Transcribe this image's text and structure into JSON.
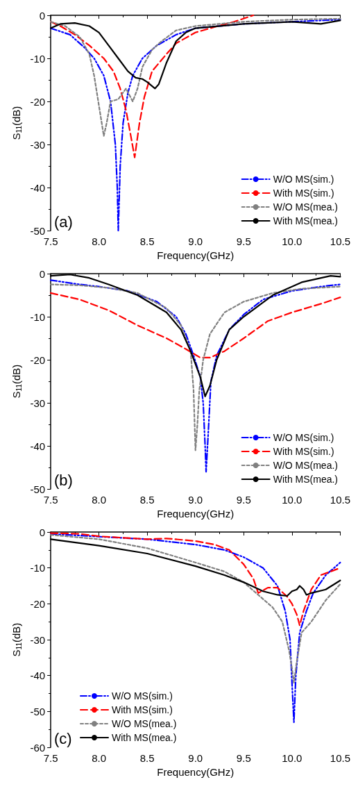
{
  "chart_data": [
    {
      "type": "line",
      "xlabel": "Frequency(GHz)",
      "ylabel": "S$_{11}$(dB)",
      "annotations": [
        "(a)"
      ],
      "xlim": [
        7.5,
        10.5
      ],
      "xticks": [
        7.5,
        {
          "value": 8,
          "label": "8.0"
        },
        8.5,
        {
          "value": 9,
          "label": "9.0"
        },
        9.5,
        {
          "value": 10,
          "label": "10.0"
        },
        10.5
      ],
      "ylim": [
        -50,
        0
      ],
      "yticks": [
        0,
        -10,
        -20,
        -30,
        -40,
        -50
      ],
      "legend": "bottom right",
      "series": [
        {
          "name": "W/O MS(sim.)",
          "color": "#0000ff",
          "line_style": "dashdot",
          "x": [
            7.5,
            7.7,
            7.85,
            7.95,
            8.05,
            8.12,
            8.17,
            8.19,
            8.2,
            8.22,
            8.25,
            8.3,
            8.35,
            8.45,
            8.6,
            8.8,
            9.0,
            9.5,
            10.0,
            10.5
          ],
          "values": [
            -3,
            -4.5,
            -7.5,
            -10,
            -14,
            -20,
            -30,
            -40,
            -50,
            -35,
            -25,
            -18,
            -14,
            -10,
            -7,
            -4.5,
            -3,
            -2,
            -1.5,
            -1
          ]
        },
        {
          "name": "With MS(sim.)",
          "color": "#ff0000",
          "line_style": "dashed",
          "x": [
            7.5,
            7.6,
            7.75,
            7.9,
            8.05,
            8.15,
            8.22,
            8.28,
            8.33,
            8.37,
            8.42,
            8.47,
            8.55,
            8.7,
            8.8,
            9.0,
            9.2,
            9.4,
            9.6
          ],
          "values": [
            -1.5,
            -2.5,
            -4.5,
            -7,
            -10,
            -13,
            -17,
            -22,
            -28,
            -33,
            -25,
            -19,
            -13,
            -9,
            -6.5,
            -4,
            -2.7,
            -1.5,
            0
          ]
        },
        {
          "name": "W/O MS(mea.)",
          "color": "#808080",
          "line_style": "dotted",
          "x": [
            7.5,
            7.65,
            7.8,
            7.9,
            7.95,
            8.0,
            8.05,
            8.08,
            8.12,
            8.2,
            8.28,
            8.35,
            8.4,
            8.45,
            8.55,
            8.65,
            8.8,
            9.0,
            9.5,
            10.0,
            10.5
          ],
          "values": [
            -1.5,
            -2.5,
            -5,
            -9,
            -14,
            -21,
            -28,
            -25,
            -20,
            -19.5,
            -17,
            -20,
            -17,
            -12,
            -8,
            -6,
            -3.5,
            -2.5,
            -1.5,
            -1,
            -0.8
          ]
        },
        {
          "name": "With MS(mea.)",
          "color": "#000000",
          "line_style": "solid",
          "x": [
            7.5,
            7.6,
            7.75,
            7.9,
            8.0,
            8.1,
            8.2,
            8.3,
            8.38,
            8.45,
            8.5,
            8.58,
            8.62,
            8.7,
            8.8,
            8.9,
            9.0,
            9.5,
            10.0,
            10.3,
            10.5
          ],
          "values": [
            -3,
            -2,
            -1.8,
            -2.5,
            -4,
            -7,
            -10,
            -13,
            -14.5,
            -14.8,
            -15.5,
            -17,
            -16,
            -11,
            -6,
            -4,
            -3,
            -2,
            -1.5,
            -2,
            -1.2
          ]
        }
      ]
    },
    {
      "type": "line",
      "xlabel": "Frequency(GHz)",
      "ylabel": "S$_{11}$(dB)",
      "annotations": [
        "(b)"
      ],
      "xlim": [
        7.5,
        10.5
      ],
      "xticks": [
        7.5,
        {
          "value": 8,
          "label": "8.0"
        },
        8.5,
        {
          "value": 9,
          "label": "9.0"
        },
        9.5,
        {
          "value": 10,
          "label": "10.0"
        },
        10.5
      ],
      "ylim": [
        -50,
        0
      ],
      "yticks": [
        0,
        -10,
        -20,
        -30,
        -40,
        -50
      ],
      "legend": "bottom right",
      "series": [
        {
          "name": "W/O MS(sim.)",
          "color": "#0000ff",
          "line_style": "dashdot",
          "x": [
            7.5,
            7.8,
            8.0,
            8.3,
            8.6,
            8.8,
            8.9,
            8.98,
            9.05,
            9.08,
            9.1,
            9.11,
            9.13,
            9.16,
            9.22,
            9.35,
            9.5,
            9.7,
            10.0,
            10.3,
            10.5
          ],
          "values": [
            -1.5,
            -2.5,
            -3,
            -4,
            -6.5,
            -10,
            -14,
            -19,
            -24,
            -30,
            -40,
            -46,
            -38,
            -25,
            -19,
            -13,
            -9.5,
            -6,
            -4,
            -3,
            -2.5
          ]
        },
        {
          "name": "With MS(sim.)",
          "color": "#ff0000",
          "line_style": "dashed",
          "x": [
            7.5,
            7.8,
            8.1,
            8.4,
            8.7,
            8.9,
            9.05,
            9.15,
            9.3,
            9.5,
            9.75,
            10.0,
            10.3,
            10.5
          ],
          "values": [
            -4.5,
            -6,
            -8.5,
            -12,
            -15,
            -17.5,
            -19.5,
            -19.5,
            -18,
            -15,
            -11,
            -9,
            -7,
            -5.5
          ]
        },
        {
          "name": "W/O MS(mea.)",
          "color": "#808080",
          "line_style": "dotted",
          "x": [
            7.5,
            7.8,
            8.1,
            8.4,
            8.7,
            8.85,
            8.95,
            8.98,
            9.0,
            9.02,
            9.04,
            9.08,
            9.15,
            9.3,
            9.5,
            9.8,
            10.1,
            10.5
          ],
          "values": [
            -2.5,
            -2.7,
            -3.3,
            -4.5,
            -8,
            -12,
            -18,
            -27,
            -41,
            -35,
            -27,
            -20,
            -14,
            -9,
            -6.5,
            -4.5,
            -3.5,
            -3
          ]
        },
        {
          "name": "With MS(mea.)",
          "color": "#000000",
          "line_style": "solid",
          "x": [
            7.5,
            7.7,
            7.9,
            8.1,
            8.4,
            8.7,
            8.85,
            8.95,
            9.05,
            9.1,
            9.15,
            9.22,
            9.35,
            9.5,
            9.8,
            10.1,
            10.4,
            10.5
          ],
          "values": [
            -0.5,
            -0.2,
            -1,
            -2.5,
            -5,
            -9,
            -13,
            -18,
            -24,
            -28.5,
            -26,
            -20,
            -13,
            -10,
            -5,
            -2,
            -0.5,
            -0.7
          ]
        }
      ]
    },
    {
      "type": "line",
      "xlabel": "Frequency(GHz)",
      "ylabel": "S$_{11}$(dB)",
      "annotations": [
        "(c)"
      ],
      "xlim": [
        7.5,
        10.5
      ],
      "xticks": [
        7.5,
        {
          "value": 8,
          "label": "8.0"
        },
        8.5,
        {
          "value": 9,
          "label": "9.0"
        },
        9.5,
        {
          "value": 10,
          "label": "10.0"
        },
        10.5
      ],
      "ylim": [
        -60,
        0
      ],
      "yticks": [
        0,
        -10,
        -20,
        -30,
        -40,
        -50,
        -60
      ],
      "legend": "bottom left",
      "series": [
        {
          "name": "W/O MS(sim.)",
          "color": "#0000ff",
          "line_style": "dashdot",
          "x": [
            7.5,
            8.0,
            8.5,
            9.0,
            9.3,
            9.5,
            9.7,
            9.85,
            9.93,
            9.98,
            10.0,
            10.02,
            10.04,
            10.08,
            10.15,
            10.22,
            10.35,
            10.5
          ],
          "values": [
            -0.5,
            -1.3,
            -2,
            -3.5,
            -5,
            -7,
            -10,
            -15,
            -22,
            -30,
            -42,
            -53,
            -40,
            -28,
            -22,
            -17,
            -12,
            -8.5
          ]
        },
        {
          "name": "With MS(sim.)",
          "color": "#ff0000",
          "line_style": "dashed",
          "x": [
            7.5,
            7.8,
            8.0,
            8.5,
            8.7,
            9.0,
            9.2,
            9.35,
            9.5,
            9.6,
            9.65,
            9.75,
            9.85,
            9.95,
            10.0,
            10.05,
            10.08,
            10.12,
            10.2,
            10.3,
            10.5
          ],
          "values": [
            -0.3,
            -0.5,
            -1.2,
            -2,
            -1.8,
            -2.5,
            -3.5,
            -5,
            -9,
            -13,
            -17,
            -15.5,
            -15.5,
            -18,
            -20,
            -23,
            -26,
            -22,
            -16,
            -12,
            -10
          ]
        },
        {
          "name": "W/O MS(mea.)",
          "color": "#808080",
          "line_style": "dotted",
          "x": [
            7.5,
            8.0,
            8.5,
            9.0,
            9.3,
            9.5,
            9.65,
            9.8,
            9.9,
            9.97,
            10.0,
            10.02,
            10.05,
            10.1,
            10.2,
            10.35,
            10.5
          ],
          "values": [
            -0.8,
            -2,
            -4.5,
            -8.5,
            -11,
            -14,
            -17.5,
            -21,
            -25,
            -33,
            -38,
            -42,
            -36,
            -28,
            -25,
            -19,
            -14.5
          ]
        },
        {
          "name": "With MS(mea.)",
          "color": "#000000",
          "line_style": "solid",
          "x": [
            7.5,
            8.0,
            8.5,
            9.0,
            9.3,
            9.5,
            9.7,
            9.85,
            9.95,
            10.0,
            10.05,
            10.08,
            10.12,
            10.15,
            10.2,
            10.35,
            10.5
          ],
          "values": [
            -2,
            -3.8,
            -6,
            -9.5,
            -12,
            -14,
            -16.5,
            -17.5,
            -17.8,
            -16.5,
            -16,
            -15,
            -16,
            -17.5,
            -17,
            -16,
            -13.5
          ]
        }
      ]
    }
  ]
}
